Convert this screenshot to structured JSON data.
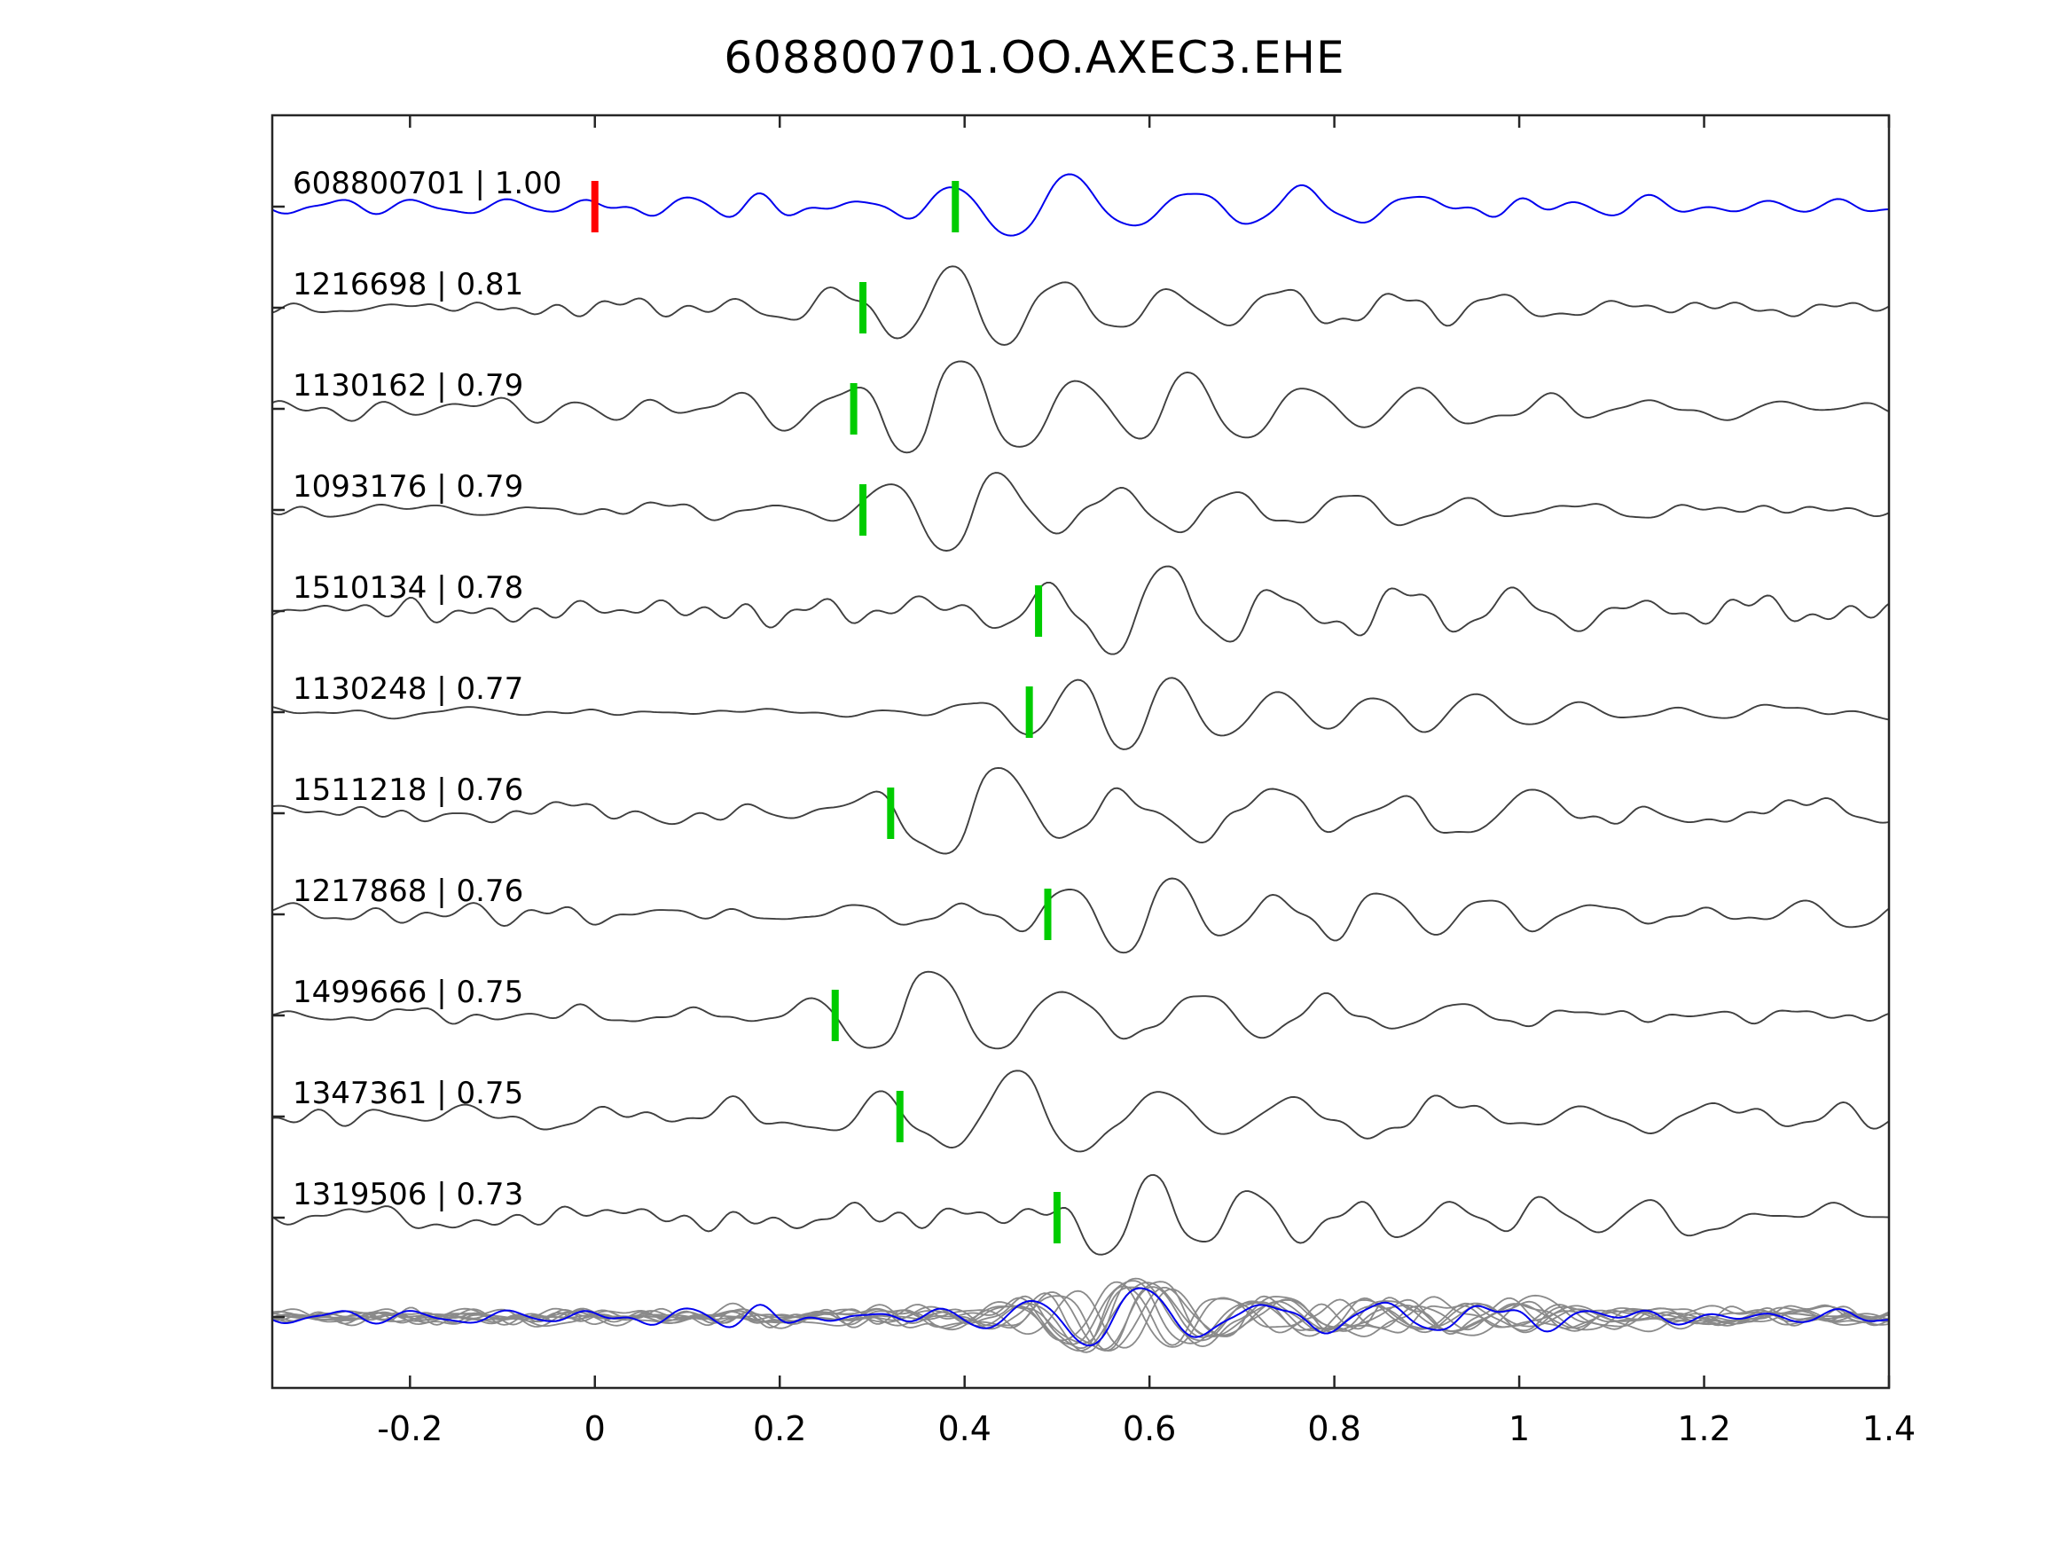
{
  "title": "608800701.OO.AXEC3.EHE",
  "chart_data": {
    "type": "line",
    "title": "608800701.OO.AXEC3.EHE",
    "xlabel": "",
    "ylabel": "",
    "xlim": [
      -0.349,
      1.4
    ],
    "grid": false,
    "legend": "none",
    "x_ticks": [
      {
        "value": -0.2,
        "label": "-0.2"
      },
      {
        "value": 0,
        "label": "0"
      },
      {
        "value": 0.2,
        "label": "0.2"
      },
      {
        "value": 0.4,
        "label": "0.4"
      },
      {
        "value": 0.6,
        "label": "0.6"
      },
      {
        "value": 0.8,
        "label": "0.8"
      },
      {
        "value": 1,
        "label": "1"
      },
      {
        "value": 1.2,
        "label": "1.2"
      },
      {
        "value": 1.4,
        "label": "1.4"
      }
    ],
    "colors": {
      "template_trace": "#0000ee",
      "detection_trace": "#3f3f3f",
      "overlay_trace": "#8a8a8a",
      "template_pick": "#ff0000",
      "detection_pick": "#00cc00",
      "axis": "#262626",
      "text": "#000000"
    },
    "traces": [
      {
        "id": "608800701",
        "correlation": "1.00",
        "label": "608800701 | 1.00",
        "role": "template",
        "origin_pick_time": 0.0,
        "pick_time": 0.39
      },
      {
        "id": "1216698",
        "correlation": "0.81",
        "label": "1216698 | 0.81",
        "role": "detection",
        "pick_time": 0.29
      },
      {
        "id": "1130162",
        "correlation": "0.79",
        "label": "1130162 | 0.79",
        "role": "detection",
        "pick_time": 0.28
      },
      {
        "id": "1093176",
        "correlation": "0.79",
        "label": "1093176 | 0.79",
        "role": "detection",
        "pick_time": 0.29
      },
      {
        "id": "1510134",
        "correlation": "0.78",
        "label": "1510134 | 0.78",
        "role": "detection",
        "pick_time": 0.48
      },
      {
        "id": "1130248",
        "correlation": "0.77",
        "label": "1130248 | 0.77",
        "role": "detection",
        "pick_time": 0.47
      },
      {
        "id": "1511218",
        "correlation": "0.76",
        "label": "1511218 | 0.76",
        "role": "detection",
        "pick_time": 0.32
      },
      {
        "id": "1217868",
        "correlation": "0.76",
        "label": "1217868 | 0.76",
        "role": "detection",
        "pick_time": 0.49
      },
      {
        "id": "1499666",
        "correlation": "0.75",
        "label": "1499666 | 0.75",
        "role": "detection",
        "pick_time": 0.26
      },
      {
        "id": "1347361",
        "correlation": "0.75",
        "label": "1347361 | 0.75",
        "role": "detection",
        "pick_time": 0.33
      },
      {
        "id": "1319506",
        "correlation": "0.73",
        "label": "1319506 | 0.73",
        "role": "detection",
        "pick_time": 0.5
      }
    ],
    "overlay_stack": {
      "description": "all traces aligned on their picks and overplotted at the bottom",
      "align_time": 0.47,
      "includes_template": true
    }
  }
}
